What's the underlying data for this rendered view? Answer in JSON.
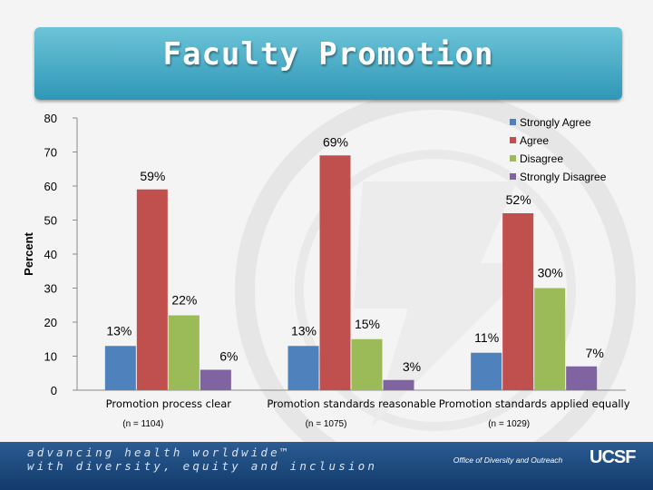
{
  "slide": {
    "title": "Faculty Promotion",
    "tagline_line1": "advancing health worldwide™",
    "tagline_line2": "with diversity, equity and inclusion",
    "office": "Office of Diversity and Outreach",
    "logo": "UCSF"
  },
  "chart_data": {
    "type": "bar",
    "ylabel": "Percent",
    "ylim": [
      0,
      80
    ],
    "yticks": [
      0,
      10,
      20,
      30,
      40,
      50,
      60,
      70,
      80
    ],
    "grid": false,
    "legend_position": "top-right",
    "categories": [
      "Promotion process clear",
      "Promotion standards reasonable",
      "Promotion standards applied equally"
    ],
    "category_notes": [
      "(n = 1104)",
      "(n = 1075)",
      "(n = 1029)"
    ],
    "series": [
      {
        "name": "Strongly Agree",
        "color": "#4f81bd",
        "values": [
          13,
          13,
          11
        ],
        "labels": [
          "13%",
          "13%",
          "11%"
        ]
      },
      {
        "name": "Agree",
        "color": "#c0504d",
        "values": [
          59,
          69,
          52
        ],
        "labels": [
          "59%",
          "69%",
          "52%"
        ]
      },
      {
        "name": "Disagree",
        "color": "#9bbb59",
        "values": [
          22,
          15,
          30
        ],
        "labels": [
          "22%",
          "15%",
          "30%"
        ]
      },
      {
        "name": "Strongly Disagree",
        "color": "#8064a2",
        "values": [
          6,
          3,
          7
        ],
        "labels": [
          "6%",
          "3%",
          "7%"
        ]
      }
    ]
  }
}
